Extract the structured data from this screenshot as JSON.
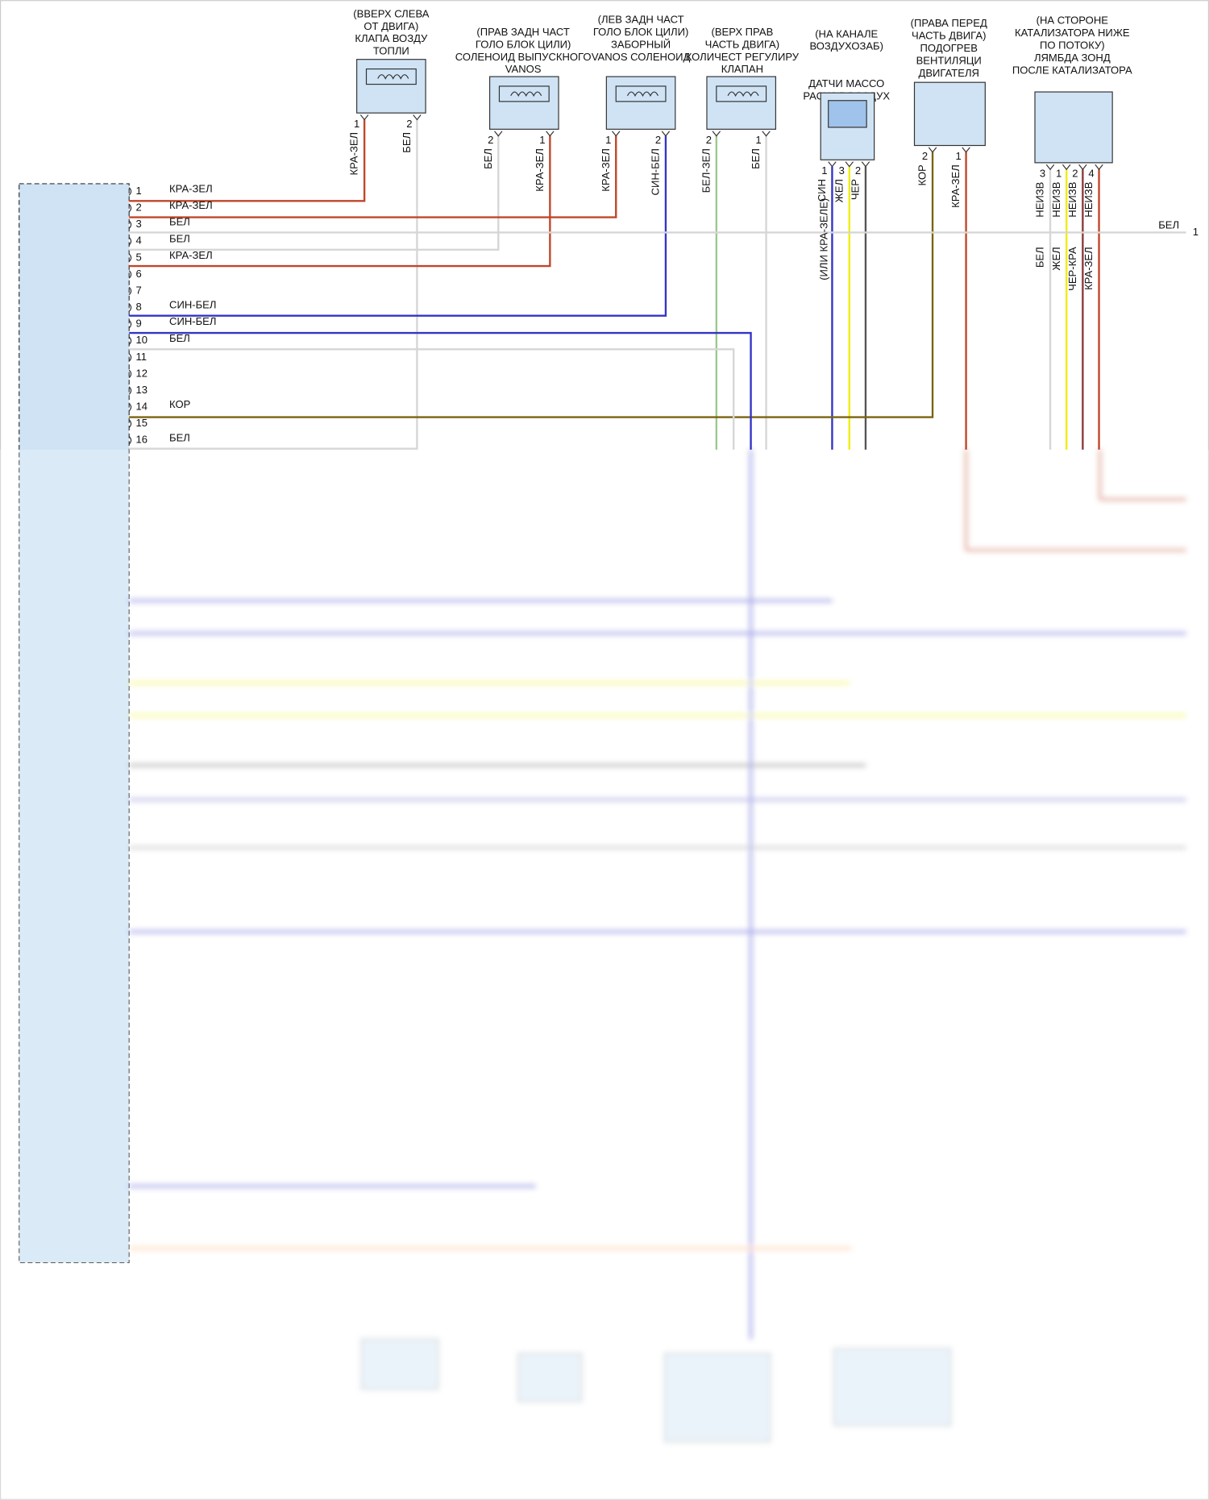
{
  "components": [
    {
      "label": [
        "(ВВЕРХ СЛЕВА",
        "ОТ ДВИГА)",
        "КЛАПА ВОЗДУ",
        "ТОПЛИ"
      ],
      "pins": [
        {
          "num": "1",
          "wire": "КРА-ЗЕЛ"
        },
        {
          "num": "2",
          "wire": "БЕЛ"
        }
      ]
    },
    {
      "label": [
        "(ПРАВ ЗАДН ЧАСТ",
        "ГОЛО БЛОК ЦИЛИ)",
        "СОЛЕНОИД ВЫПУСКНОГО",
        "VANOS"
      ],
      "pins": [
        {
          "num": "2",
          "wire": "БЕЛ"
        },
        {
          "num": "1",
          "wire": "КРА-ЗЕЛ"
        }
      ]
    },
    {
      "label": [
        "(ЛЕВ ЗАДН ЧАСТ",
        "ГОЛО БЛОК ЦИЛИ)",
        "ЗАБОРНЫЙ",
        "VANOS СОЛЕНОИД"
      ],
      "pins": [
        {
          "num": "1",
          "wire": "КРА-ЗЕЛ"
        },
        {
          "num": "2",
          "wire": "СИН-БЕЛ"
        }
      ]
    },
    {
      "label": [
        "(ВЕРХ ПРАВ",
        "ЧАСТЬ ДВИГА)",
        "КОЛИЧЕСТ РЕГУЛИРУ",
        "КЛАПАН"
      ],
      "pins": [
        {
          "num": "2",
          "wire": "БЕЛ-ЗЕЛ"
        },
        {
          "num": "1",
          "wire": "БЕЛ"
        }
      ]
    },
    {
      "label": [
        "(НА КАНАЛЕ",
        "ВОЗДУХОЗАБ)",
        "ДАТЧИ МАССО",
        "РАСХОД ВОЗДУХ"
      ],
      "pins": [
        {
          "num": "1",
          "wire": "СИН"
        },
        {
          "num": "3",
          "wire": "ЖЕЛ"
        },
        {
          "num": "2",
          "wire": "ЧЕР"
        }
      ],
      "note": "(ИЛИ КРА-ЗЕЛЕ)"
    },
    {
      "label": [
        "(ПРАВА ПЕРЕД",
        "ЧАСТЬ ДВИГА)",
        "ПОДОГРЕВ",
        "ВЕНТИЛЯЦИ",
        "ДВИГАТЕЛЯ"
      ],
      "pins": [
        {
          "num": "2",
          "wire": "КОР"
        },
        {
          "num": "1",
          "wire": "КРА-ЗЕЛ"
        }
      ]
    },
    {
      "label": [
        "(НА СТОРОНЕ",
        "КАТАЛИЗАТОРА НИЖЕ",
        "ПО ПОТОКУ)",
        "ЛЯМБДА ЗОНД",
        "ПОСЛЕ КАТАЛИЗАТОРА"
      ],
      "pins": [
        {
          "num": "3",
          "wire": "НЕИЗВ",
          "wire2": "БЕЛ"
        },
        {
          "num": "1",
          "wire": "НЕИЗВ",
          "wire2": "ЖЕЛ"
        },
        {
          "num": "2",
          "wire": "НЕИЗВ",
          "wire2": "ЧЕР-КРА"
        },
        {
          "num": "4",
          "wire": "НЕИЗВ",
          "wire2": "КРА-ЗЕЛ"
        }
      ]
    }
  ],
  "ecu_pins": [
    {
      "num": "1",
      "wire": "КРА-ЗЕЛ"
    },
    {
      "num": "2",
      "wire": "КРА-ЗЕЛ"
    },
    {
      "num": "3",
      "wire": "БЕЛ"
    },
    {
      "num": "4",
      "wire": "БЕЛ"
    },
    {
      "num": "5",
      "wire": "КРА-ЗЕЛ"
    },
    {
      "num": "6"
    },
    {
      "num": "7"
    },
    {
      "num": "8",
      "wire": "СИН-БЕЛ"
    },
    {
      "num": "9",
      "wire": "СИН-БЕЛ"
    },
    {
      "num": "10",
      "wire": "БЕЛ"
    },
    {
      "num": "11"
    },
    {
      "num": "12"
    },
    {
      "num": "13"
    },
    {
      "num": "14",
      "wire": "КОР"
    },
    {
      "num": "15"
    },
    {
      "num": "16",
      "wire": "БЕЛ"
    }
  ],
  "right_terminal": {
    "wire": "БЕЛ",
    "num": "1"
  }
}
